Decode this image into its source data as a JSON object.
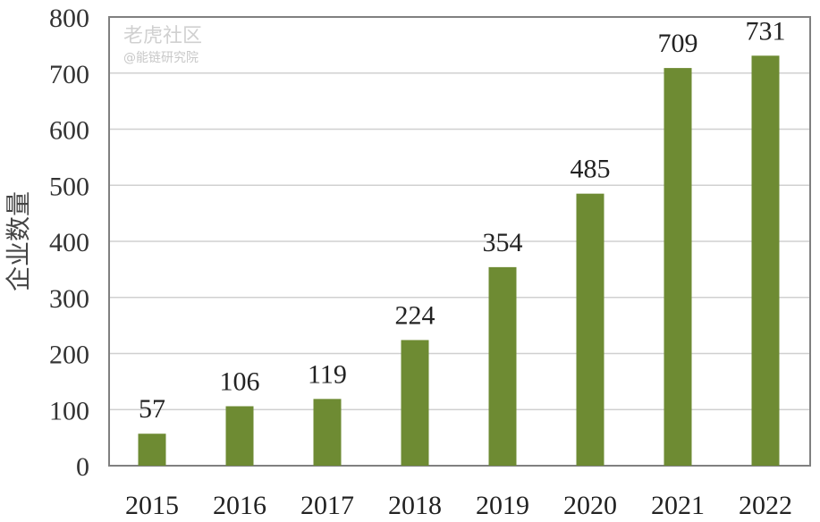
{
  "chart_data": {
    "type": "bar",
    "categories": [
      "2015",
      "2016",
      "2017",
      "2018",
      "2019",
      "2020",
      "2021",
      "2022"
    ],
    "values": [
      57,
      106,
      119,
      224,
      354,
      485,
      709,
      731
    ],
    "title": "",
    "xlabel": "",
    "ylabel": "企业数量",
    "ylim": [
      0,
      800
    ],
    "yticks": [
      0,
      100,
      200,
      300,
      400,
      500,
      600,
      700,
      800
    ],
    "grid": true,
    "bar_color": "#6e8b33",
    "data_labels": true
  },
  "watermark": {
    "line1": "老虎社区",
    "line2": "@能链研究院"
  }
}
